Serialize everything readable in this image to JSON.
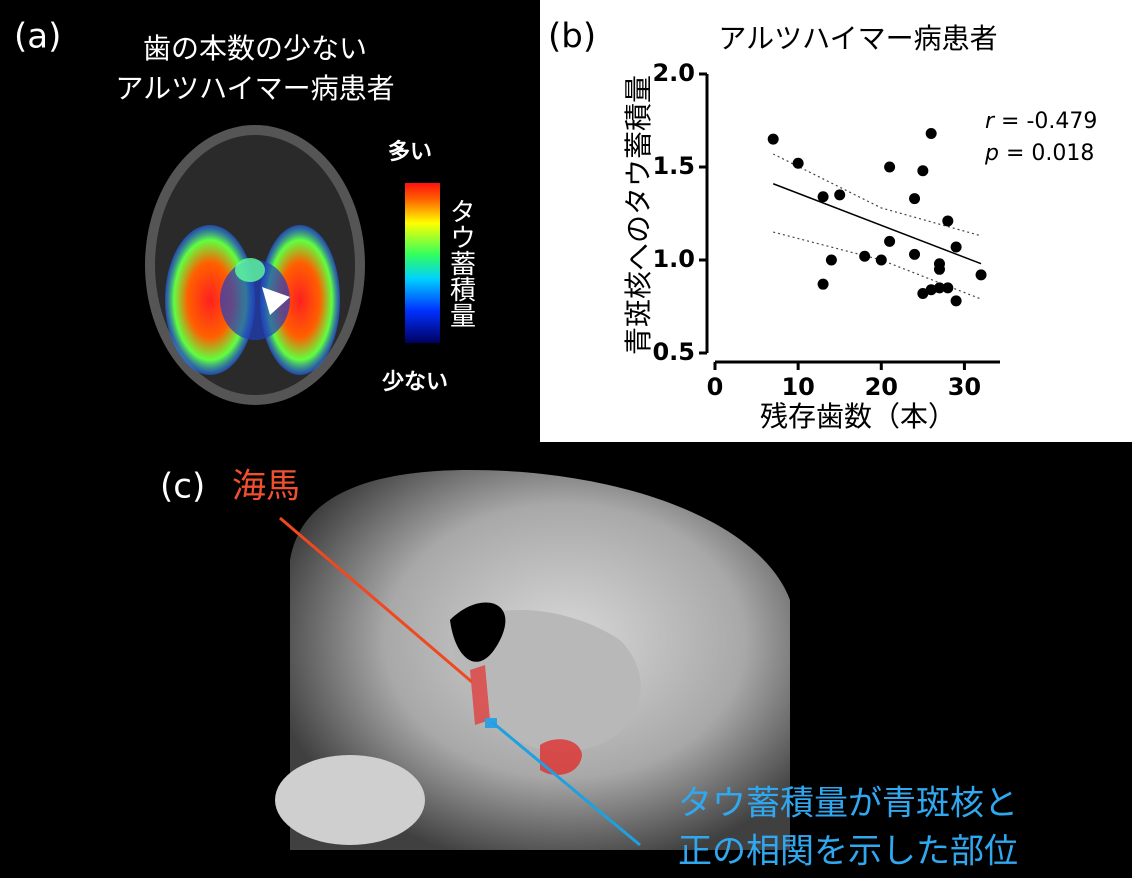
{
  "panel_a": {
    "label": "(a)",
    "title_lines": [
      "歯の本数の少ない",
      "アルツハイマー病患者"
    ],
    "scale_high": "多い",
    "scale_title": "タウ蓄積量",
    "scale_low": "少ない"
  },
  "chart_data": {
    "type": "scatter",
    "panel_label": "(b)",
    "title": "アルツハイマー病患者",
    "x_label": "残存歯数（本）",
    "y_label": "青斑核へのタウ蓄積量",
    "x": [
      7,
      10,
      13,
      15,
      14,
      13,
      18,
      20,
      21,
      21,
      24,
      24,
      25,
      26,
      28,
      29,
      27,
      27,
      25,
      26,
      27,
      28,
      29,
      32
    ],
    "values": [
      1.65,
      1.52,
      1.34,
      1.35,
      1.0,
      0.87,
      1.02,
      1.0,
      1.5,
      1.1,
      1.03,
      1.33,
      1.48,
      1.68,
      1.21,
      1.07,
      0.98,
      0.95,
      0.82,
      0.84,
      0.85,
      0.85,
      0.78,
      0.92
    ],
    "color": "#000000",
    "fit_line": {
      "x": [
        7,
        32
      ],
      "values": [
        1.41,
        0.98
      ]
    },
    "confidence_band": {
      "x": [
        7,
        20,
        32
      ],
      "upper": [
        1.57,
        1.28,
        1.13
      ],
      "lower": [
        1.15,
        1.0,
        0.79
      ]
    },
    "xlim": [
      0,
      35
    ],
    "ylim": [
      0.5,
      2.0
    ],
    "xticks": [
      0,
      10,
      20,
      30
    ],
    "yticks": [
      {
        "value": 0.5,
        "label": "0.5"
      },
      {
        "value": 1.0,
        "label": "1.0"
      },
      {
        "value": 1.5,
        "label": "1.5"
      },
      {
        "value": 2.0,
        "label": "2.0"
      }
    ],
    "stats": [
      {
        "symbol": "r",
        "text": " = -0.479"
      },
      {
        "symbol": "p",
        "text": " = 0.018"
      }
    ]
  },
  "panel_c": {
    "label": "(c)",
    "hippocampus": "海馬",
    "region_lines": [
      "タウ蓄積量が青斑核と",
      "正の相関を示した部位"
    ]
  }
}
